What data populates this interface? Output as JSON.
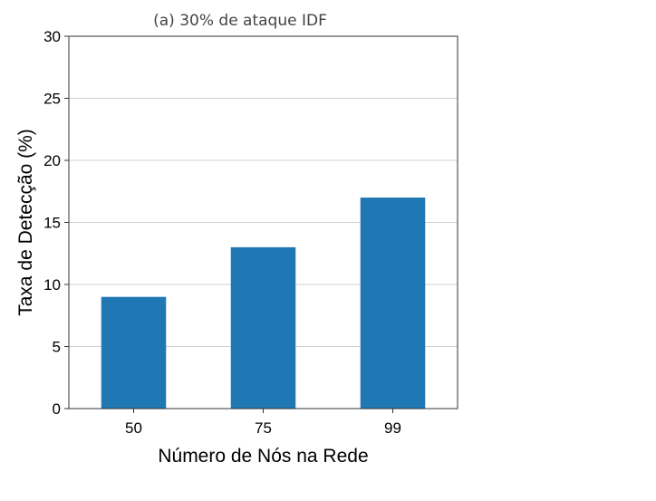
{
  "chart_data": {
    "type": "bar",
    "title": "(a) 30% de ataque IDF",
    "xlabel": "Número de Nós na Rede",
    "ylabel": "Taxa de Detecção (%)",
    "categories": [
      "50",
      "75",
      "99"
    ],
    "values": [
      9,
      13,
      17
    ],
    "ylim": [
      0,
      30
    ],
    "yticks": [
      0,
      5,
      10,
      15,
      20,
      25,
      30
    ],
    "bar_color": "#1f77b4",
    "grid": "horizontal",
    "legend": "none"
  }
}
